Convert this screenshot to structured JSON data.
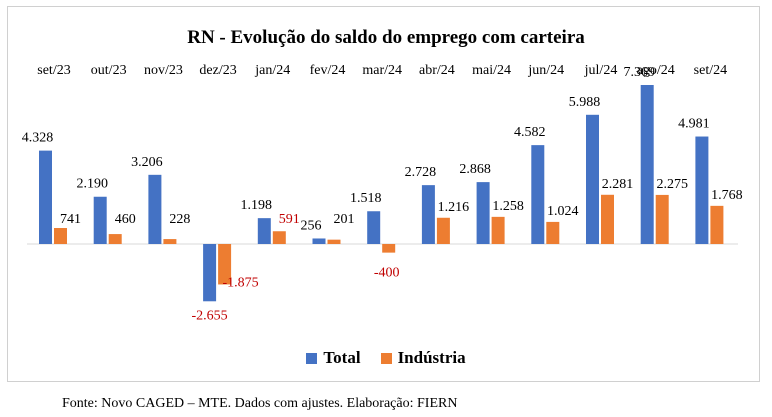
{
  "chart_data": {
    "type": "bar",
    "title": "RN - Evolução do saldo do emprego com carteira",
    "categories": [
      "set/23",
      "out/23",
      "nov/23",
      "dez/23",
      "jan/24",
      "fev/24",
      "mar/24",
      "abr/24",
      "mai/24",
      "jun/24",
      "jul/24",
      "ago/24",
      "set/24"
    ],
    "series": [
      {
        "name": "Total",
        "color": "#4472c4",
        "values": [
          4328,
          2190,
          3206,
          -2655,
          1198,
          256,
          1518,
          2728,
          2868,
          4582,
          5988,
          7369,
          4981
        ],
        "labels": [
          "4.328",
          "2.190",
          "3.206",
          "-2.655",
          "1.198",
          "256",
          "1.518",
          "2.728",
          "2.868",
          "4.582",
          "5.988",
          "7.369",
          "4.981"
        ]
      },
      {
        "name": "Indústria",
        "color": "#ed7d31",
        "values": [
          741,
          460,
          228,
          -1875,
          591,
          201,
          -400,
          1216,
          1258,
          1024,
          2281,
          2275,
          1768
        ],
        "labels": [
          "741",
          "460",
          "228",
          "-1.875",
          "591",
          "201",
          "-400",
          "1.216",
          "1.258",
          "1.024",
          "2.281",
          "2.275",
          "1.768"
        ]
      }
    ],
    "negative_label_color": "#c00000",
    "highlight_label_color": "#c00000",
    "highlighted_labels": [
      {
        "series": 1,
        "index": 4
      }
    ],
    "legend_position": "bottom",
    "grid": false
  },
  "source_note": "Fonte: Novo CAGED – MTE. Dados com ajustes. Elaboração: FIERN"
}
